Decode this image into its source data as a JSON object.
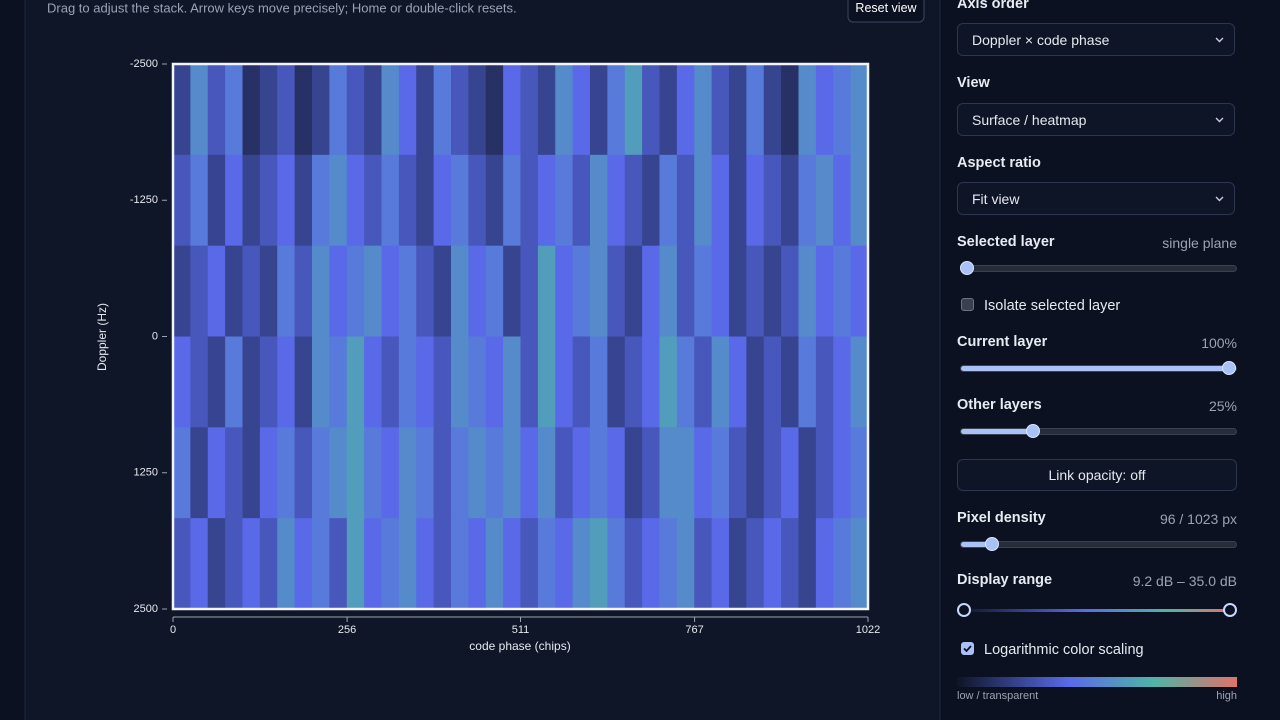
{
  "header": {
    "hint": "Drag to adjust the stack. Arrow keys move precisely; Home or double-click resets.",
    "reset_button": "Reset view"
  },
  "plot": {
    "x_label": "code phase (chips)",
    "y_label": "Doppler (Hz)",
    "xlim": [
      0,
      1022
    ],
    "ylim": [
      -2500,
      2500
    ],
    "xticks": [
      0,
      256,
      511,
      767,
      1022
    ],
    "yticks": [
      -2500,
      -1250,
      0,
      1250,
      2500
    ],
    "heatmap": [
      [
        16,
        28,
        19,
        25,
        13,
        16,
        19,
        13,
        16,
        25,
        19,
        16,
        28,
        22,
        16,
        25,
        19,
        16,
        13,
        22,
        19,
        16,
        28,
        22,
        16,
        25,
        31,
        19,
        16,
        22,
        28,
        19,
        16,
        25,
        16,
        13,
        28,
        22,
        25,
        28
      ],
      [
        19,
        25,
        16,
        22,
        16,
        19,
        22,
        16,
        25,
        28,
        22,
        19,
        25,
        19,
        16,
        22,
        25,
        19,
        16,
        25,
        19,
        22,
        25,
        19,
        28,
        22,
        19,
        16,
        25,
        19,
        28,
        22,
        16,
        22,
        19,
        16,
        25,
        28,
        22,
        28
      ],
      [
        16,
        19,
        22,
        16,
        19,
        16,
        25,
        19,
        28,
        22,
        25,
        28,
        22,
        25,
        19,
        16,
        28,
        22,
        25,
        16,
        19,
        31,
        22,
        25,
        28,
        19,
        16,
        22,
        28,
        19,
        25,
        22,
        16,
        19,
        16,
        19,
        28,
        22,
        25,
        22
      ],
      [
        22,
        19,
        16,
        25,
        16,
        19,
        22,
        16,
        28,
        25,
        31,
        22,
        19,
        25,
        22,
        19,
        28,
        25,
        22,
        28,
        19,
        31,
        22,
        19,
        25,
        16,
        19,
        22,
        31,
        25,
        19,
        28,
        22,
        16,
        19,
        16,
        25,
        19,
        22,
        28
      ],
      [
        25,
        16,
        22,
        19,
        16,
        22,
        25,
        19,
        25,
        28,
        31,
        25,
        22,
        28,
        25,
        19,
        25,
        28,
        25,
        28,
        22,
        28,
        19,
        22,
        25,
        22,
        16,
        19,
        28,
        28,
        22,
        25,
        19,
        16,
        19,
        22,
        16,
        19,
        22,
        25
      ],
      [
        19,
        22,
        16,
        19,
        22,
        19,
        28,
        22,
        25,
        19,
        31,
        22,
        25,
        28,
        22,
        19,
        25,
        22,
        28,
        22,
        19,
        25,
        22,
        28,
        31,
        25,
        19,
        22,
        25,
        28,
        19,
        22,
        16,
        19,
        22,
        19,
        16,
        22,
        25,
        28
      ]
    ]
  },
  "controls": {
    "axis_order": {
      "label": "Axis order",
      "value": "Doppler × code phase"
    },
    "view": {
      "label": "View",
      "value": "Surface / heatmap"
    },
    "aspect": {
      "label": "Aspect ratio",
      "value": "Fit view"
    },
    "selected_layer": {
      "label": "Selected layer",
      "value_label": "single plane"
    },
    "isolate": {
      "label": "Isolate selected layer",
      "checked": false
    },
    "current_layer": {
      "label": "Current layer",
      "value_label": "100%",
      "value": 100
    },
    "other_layers": {
      "label": "Other layers",
      "value_label": "25%",
      "value": 25
    },
    "link_button": "Link opacity: off",
    "pixel_density": {
      "label": "Pixel density",
      "value_label": "96 / 1023 px",
      "value": 96,
      "max": 1023
    },
    "display_range": {
      "label": "Display range",
      "value_label": "9.2 dB – 35.0 dB",
      "min": 9.2,
      "max": 35.0
    },
    "log_scale": {
      "label": "Logarithmic color scaling",
      "checked": true
    },
    "colorbar": {
      "low": "low / transparent",
      "high": "high"
    }
  }
}
